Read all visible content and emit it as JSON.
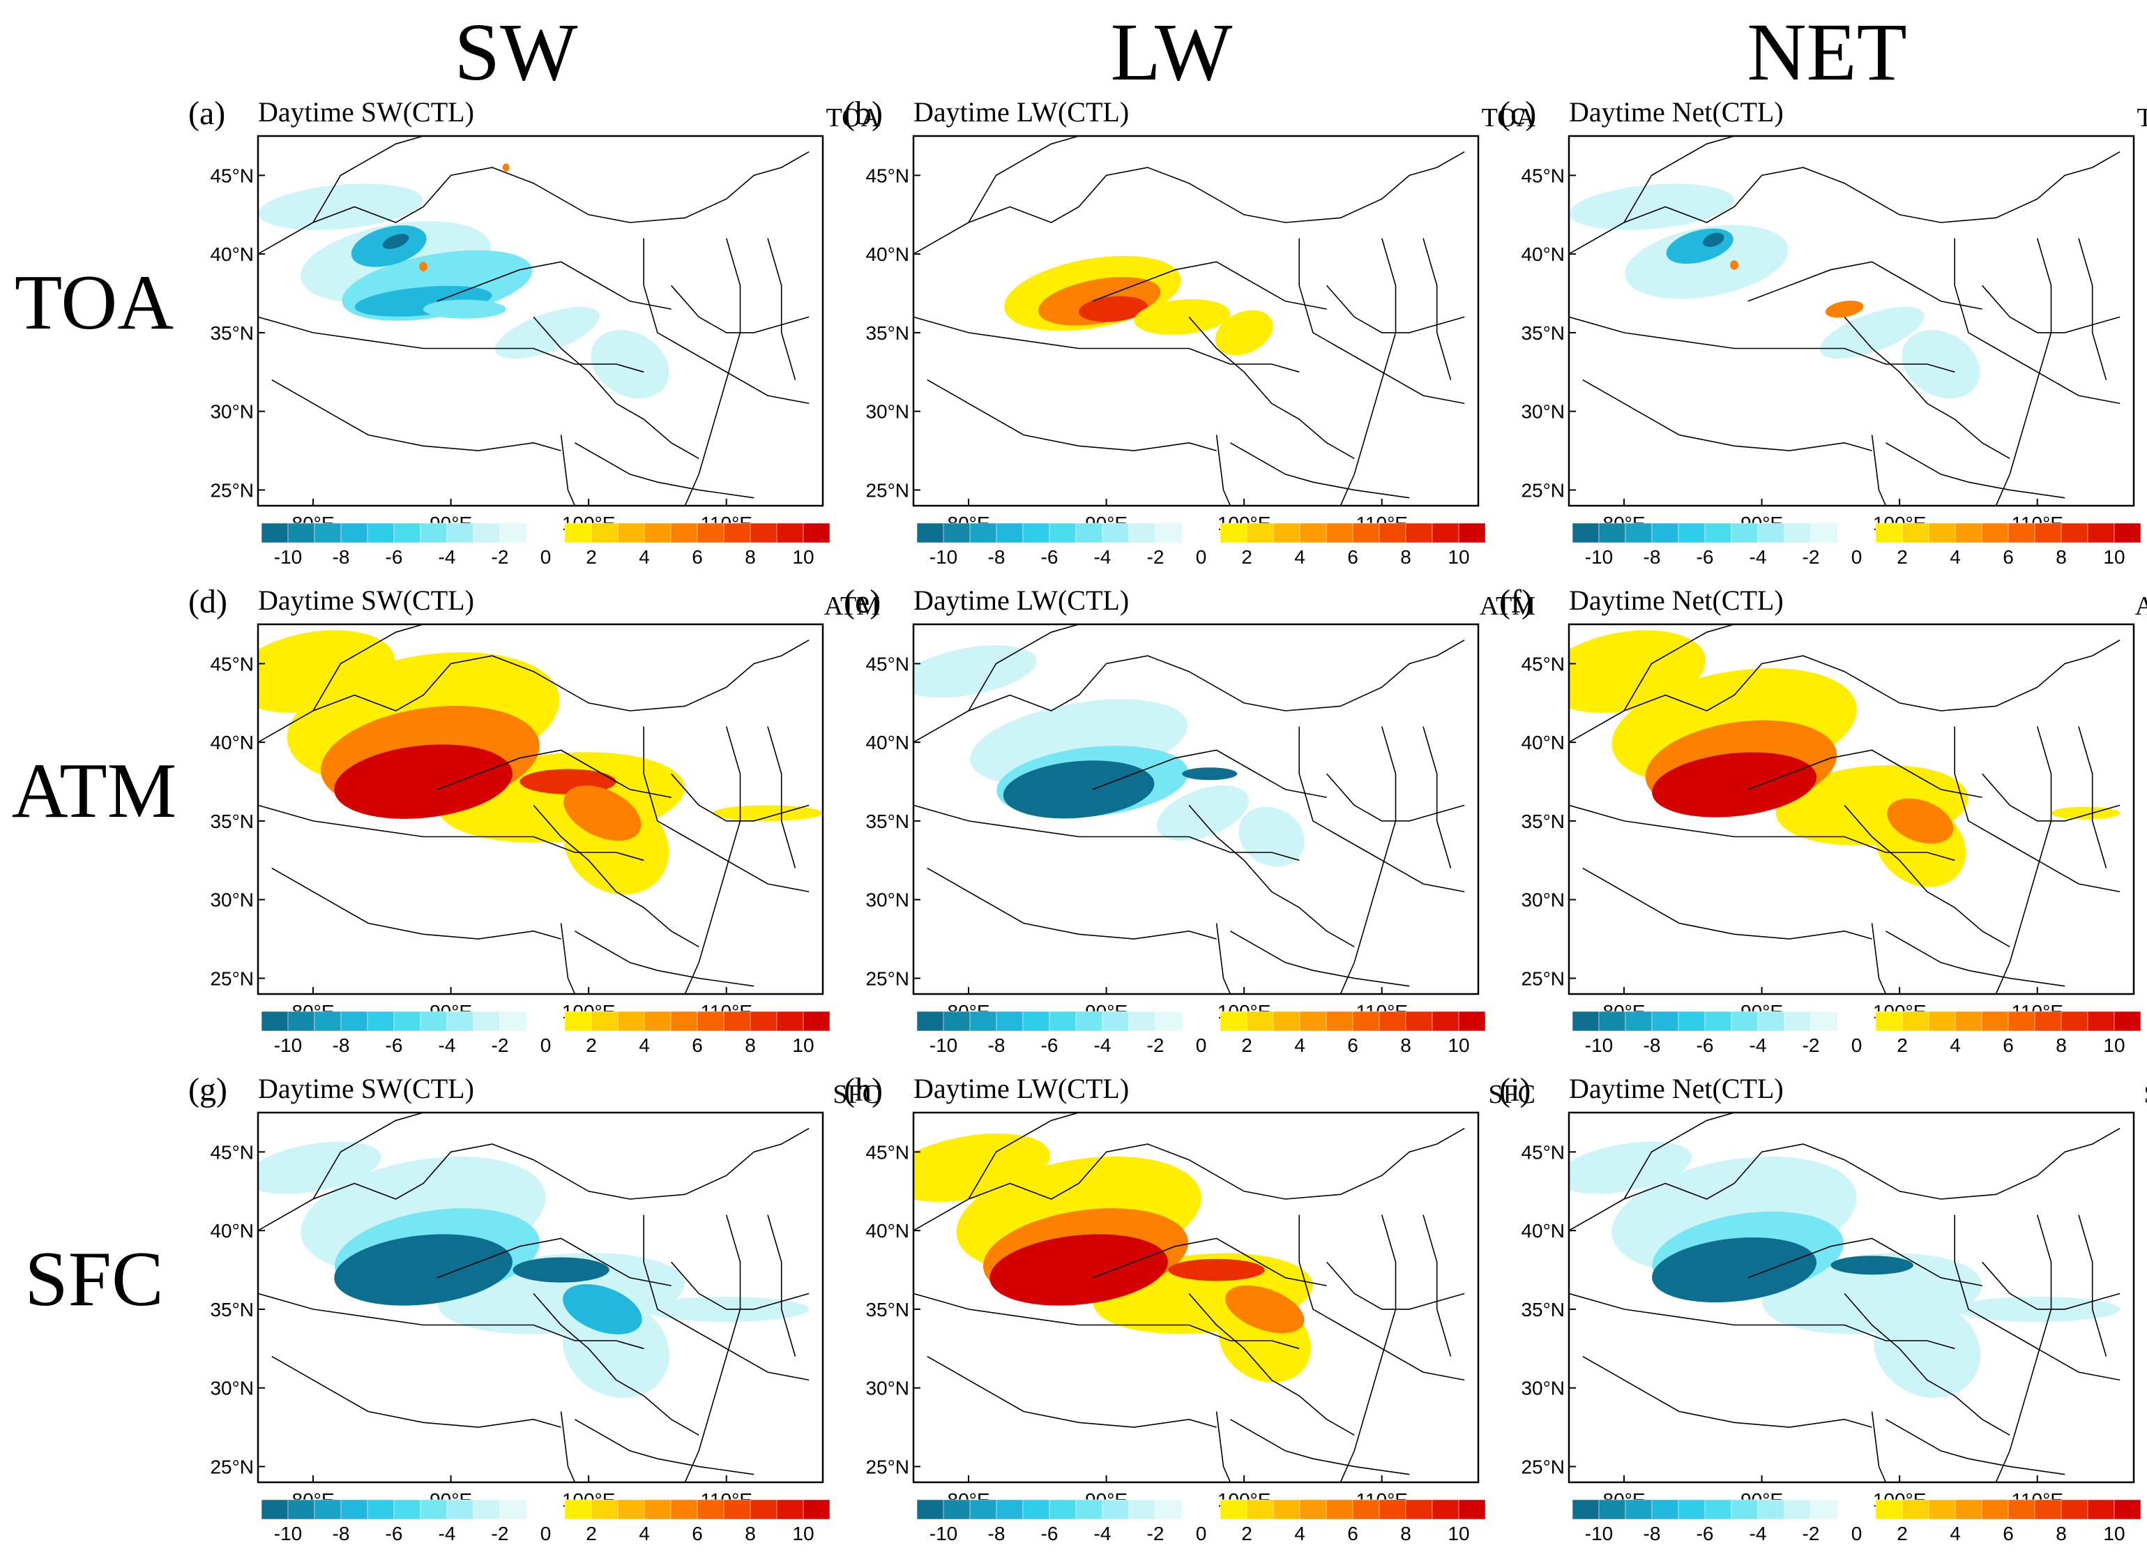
{
  "columns": [
    "SW",
    "LW",
    "NET"
  ],
  "rows": [
    "TOA",
    "ATM",
    "SFC"
  ],
  "lat_ticks": [
    "45°N",
    "40°N",
    "35°N",
    "30°N",
    "25°N"
  ],
  "lon_ticks": [
    "80°E",
    "90°E",
    "100°E",
    "110°E"
  ],
  "neg_colorbar": {
    "labels": [
      "-10",
      "-8",
      "-6",
      "-4",
      "-2"
    ],
    "colors": [
      "#0d6e8f",
      "#1389aa",
      "#1aa2c6",
      "#22b8dd",
      "#2fcce9",
      "#4bdcf0",
      "#74e6f4",
      "#a2eef7",
      "#cdf5f8",
      "#e4f9f9"
    ]
  },
  "zero_label": "0",
  "pos_colorbar": {
    "labels": [
      "2",
      "4",
      "6",
      "8",
      "10"
    ],
    "colors": [
      "#ffee00",
      "#fed400",
      "#feb800",
      "#fd9c00",
      "#fc8000",
      "#f86400",
      "#f24800",
      "#ea2e00",
      "#e01400",
      "#d40000"
    ]
  },
  "panels": [
    {
      "letter": "(a)",
      "title": "Daytime SW(CTL)",
      "layer": "TOA",
      "pattern": "toa_sw"
    },
    {
      "letter": "(b)",
      "title": "Daytime LW(CTL)",
      "layer": "TOA",
      "pattern": "toa_lw"
    },
    {
      "letter": "(c)",
      "title": "Daytime Net(CTL)",
      "layer": "TOA",
      "pattern": "toa_net"
    },
    {
      "letter": "(d)",
      "title": "Daytime SW(CTL)",
      "layer": "ATM",
      "pattern": "atm_sw"
    },
    {
      "letter": "(e)",
      "title": "Daytime LW(CTL)",
      "layer": "ATM",
      "pattern": "atm_lw"
    },
    {
      "letter": "(f)",
      "title": "Daytime Net(CTL)",
      "layer": "ATM",
      "pattern": "atm_net"
    },
    {
      "letter": "(g)",
      "title": "Daytime SW(CTL)",
      "layer": "SFC",
      "pattern": "sfc_sw"
    },
    {
      "letter": "(h)",
      "title": "Daytime LW(CTL)",
      "layer": "SFC",
      "pattern": "sfc_lw"
    },
    {
      "letter": "(i)",
      "title": "Daytime Net(CTL)",
      "layer": "SFC",
      "pattern": "sfc_net"
    }
  ]
}
